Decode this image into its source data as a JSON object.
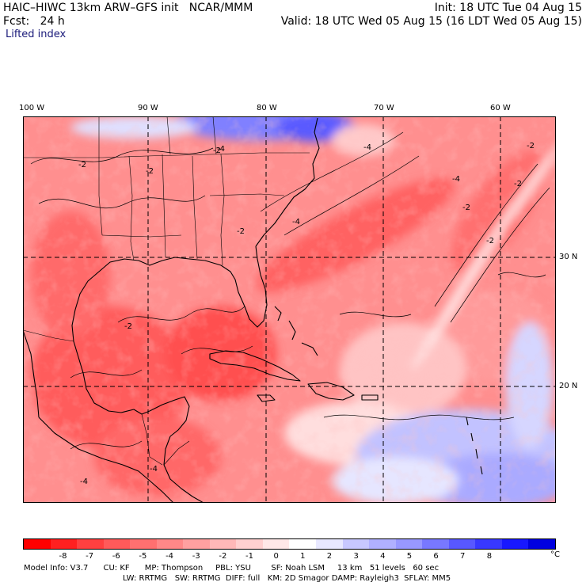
{
  "header": {
    "model_line": "HAIC–HIWC 13km ARW–GFS init   NCAR/MMM",
    "init_line": "Init: 18 UTC Tue 04 Aug 15",
    "fcst_line": "Fcst:   24 h",
    "valid_line": "Valid: 18 UTC Wed 05 Aug 15 (16 LDT Wed 05 Aug 15)",
    "field": "Lifted index"
  },
  "map": {
    "lon_labels": [
      "100 W",
      "90 W",
      "80 W",
      "70 W",
      "60 W"
    ],
    "lat_labels": [
      "30 N",
      "20 N"
    ],
    "contour_labels": [
      "-2",
      "-4",
      "-2",
      "-2",
      "-2",
      "-4",
      "-2",
      "-2",
      "-2",
      "-4",
      "-4",
      "-2",
      "-2",
      "-4",
      "-4"
    ]
  },
  "colorbar": {
    "colors": [
      "#ff0000",
      "#ff2020",
      "#ff4040",
      "#ff5a5a",
      "#ff7070",
      "#ff8888",
      "#ffa0a0",
      "#ffb8b8",
      "#ffd0d0",
      "#ffe8e8",
      "#ffffff",
      "#e8e8ff",
      "#c8c8ff",
      "#b0b0ff",
      "#9898ff",
      "#7878ff",
      "#5858ff",
      "#3838ff",
      "#1818ff",
      "#0000e0"
    ],
    "labels": [
      "-8",
      "-7",
      "-6",
      "-5",
      "-4",
      "-3",
      "-2",
      "-1",
      "0",
      "1",
      "2",
      "3",
      "4",
      "5",
      "6",
      "7",
      "8"
    ],
    "unit": "°C"
  },
  "footer": {
    "line1": "Model Info: V3.7      CU: KF      MP: Thompson     PBL: YSU        SF: Noah LSM     13 km   51 levels   60 sec",
    "line2": "LW: RRTMG   SW: RRTMG  DIFF: full   KM: 2D Smagor DAMP: Rayleigh3  SFLAY: MM5"
  },
  "colors": {
    "neg_strong": "#ff4040",
    "neg_weak": "#ffb8b8",
    "pos_weak": "#c8c8ff",
    "pos_strong": "#3838ff"
  }
}
